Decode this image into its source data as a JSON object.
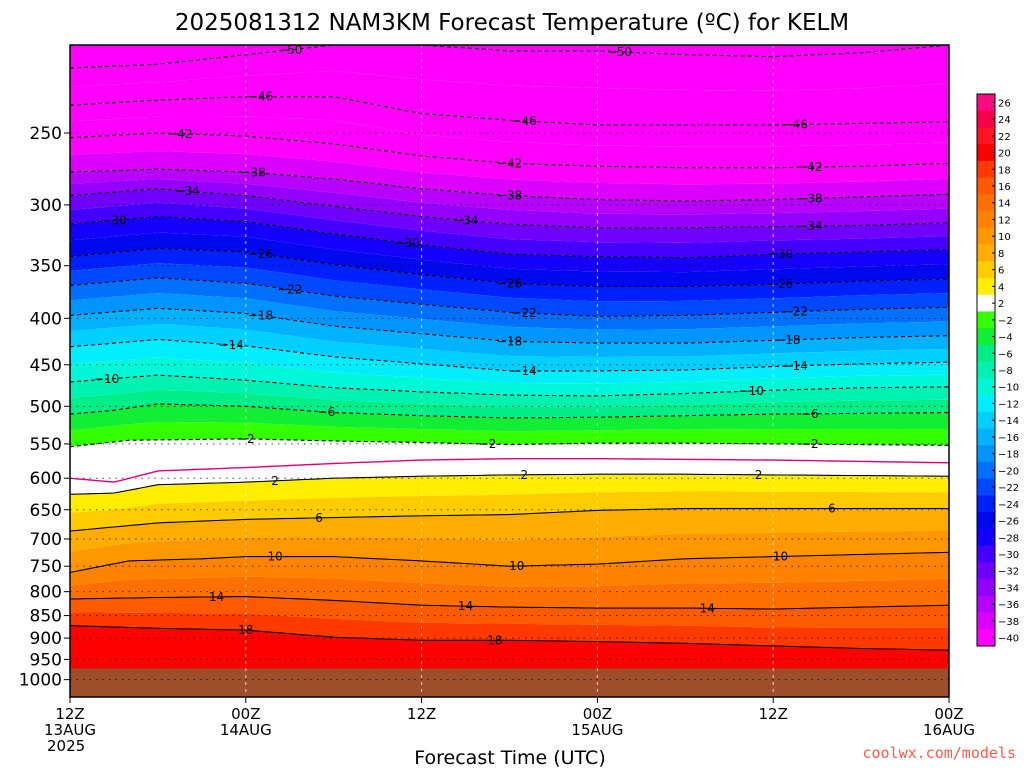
{
  "chart_data": {
    "type": "heatmap",
    "title": "2025081312 NAM3KM Forecast Temperature (ºC) for KELM",
    "xlabel": "Forecast Time (UTC)",
    "ylabel": "",
    "x_ticks": [
      {
        "hours": 0,
        "lines": [
          "12Z",
          "13AUG",
          "2025"
        ]
      },
      {
        "hours": 12,
        "lines": [
          "00Z",
          "14AUG"
        ]
      },
      {
        "hours": 24,
        "lines": [
          "12Z"
        ]
      },
      {
        "hours": 36,
        "lines": [
          "00Z",
          "15AUG"
        ]
      },
      {
        "hours": 48,
        "lines": [
          "12Z"
        ]
      },
      {
        "hours": 60,
        "lines": [
          "00Z",
          "16AUG"
        ]
      }
    ],
    "xlim_hours": [
      0,
      60
    ],
    "y_scale": "log-pressure",
    "ylim_hPa": [
      1045,
      200
    ],
    "y_ticks_hPa": [
      250,
      300,
      350,
      400,
      450,
      500,
      550,
      600,
      650,
      700,
      750,
      800,
      850,
      900,
      950,
      1000
    ],
    "surface_pressure_hPa": 972,
    "surface_color": "#9c4f2a",
    "colorbar_levels": [
      26,
      24,
      22,
      20,
      18,
      16,
      14,
      12,
      10,
      8,
      6,
      4,
      2,
      -2,
      -4,
      -6,
      -8,
      -10,
      -12,
      -14,
      -16,
      -18,
      -20,
      -22,
      -24,
      -26,
      -28,
      -30,
      -32,
      -34,
      -36,
      -38,
      -40
    ],
    "colorbar_label_texts": [
      "26",
      "24",
      "22",
      "20",
      "18",
      "16",
      "14",
      "12",
      "10",
      "8",
      "6",
      "4",
      "2",
      "−2",
      "−4",
      "−6",
      "−8",
      "−10",
      "−12",
      "−14",
      "−16",
      "−18",
      "−20",
      "−22",
      "−24",
      "−26",
      "−28",
      "−30",
      "−32",
      "−34",
      "−36",
      "−38",
      "−40"
    ],
    "colorbar_colors": [
      "#fb0a83",
      "#f9004b",
      "#ff1424",
      "#ff0000",
      "#ff3a00",
      "#ff5a00",
      "#ff7000",
      "#ff8300",
      "#ff9800",
      "#ffad00",
      "#ffcc00",
      "#ffee00",
      "#ffffff",
      "#33ff00",
      "#11ee33",
      "#00ee88",
      "#00f2b0",
      "#00f8d8",
      "#00eeff",
      "#00d0ff",
      "#00b2ff",
      "#0094ff",
      "#0070ff",
      "#0048ff",
      "#0020ff",
      "#0008ee",
      "#1500ff",
      "#4400ff",
      "#7000ff",
      "#9400ff",
      "#b800ff",
      "#dc00ff",
      "#ff00ff"
    ],
    "freezing_line": [
      [
        0,
        600
      ],
      [
        3,
        606
      ],
      [
        6,
        589
      ],
      [
        12,
        584
      ],
      [
        18,
        578
      ],
      [
        24,
        573
      ],
      [
        30,
        571
      ],
      [
        36,
        571
      ],
      [
        42,
        572
      ],
      [
        48,
        573
      ],
      [
        54,
        575
      ],
      [
        60,
        577
      ]
    ],
    "isotherms": [
      {
        "value": -50,
        "label_texts": [
          "−50",
          "−50"
        ],
        "points": [
          [
            0,
            212
          ],
          [
            6,
            210
          ],
          [
            12,
            205
          ],
          [
            18,
            200
          ],
          [
            24,
            200
          ],
          [
            30,
            203
          ],
          [
            36,
            203
          ],
          [
            42,
            205
          ],
          [
            48,
            206
          ],
          [
            54,
            204
          ],
          [
            60,
            200
          ]
        ],
        "label_hours": [
          15,
          37.5
        ]
      },
      {
        "value": -46,
        "points": [
          [
            0,
            233
          ],
          [
            6,
            230
          ],
          [
            12,
            228
          ],
          [
            18,
            228
          ],
          [
            24,
            238
          ],
          [
            30,
            242
          ],
          [
            36,
            245
          ],
          [
            42,
            245
          ],
          [
            48,
            245
          ],
          [
            54,
            244
          ],
          [
            60,
            243
          ]
        ],
        "label_texts": [
          "−46",
          "−46",
          "−46"
        ],
        "label_hours": [
          13,
          31,
          49.5
        ]
      },
      {
        "value": -42,
        "points": [
          [
            0,
            253
          ],
          [
            6,
            250
          ],
          [
            12,
            252
          ],
          [
            18,
            257
          ],
          [
            24,
            265
          ],
          [
            30,
            270
          ],
          [
            36,
            272
          ],
          [
            42,
            273
          ],
          [
            48,
            273
          ],
          [
            54,
            272
          ],
          [
            60,
            270
          ]
        ],
        "label_texts": [
          "−42",
          "−42",
          "−42"
        ],
        "label_hours": [
          7.5,
          30,
          50.5
        ]
      },
      {
        "value": -38,
        "points": [
          [
            0,
            276
          ],
          [
            6,
            274
          ],
          [
            12,
            276
          ],
          [
            18,
            281
          ],
          [
            24,
            288
          ],
          [
            30,
            293
          ],
          [
            36,
            296
          ],
          [
            42,
            297
          ],
          [
            48,
            296
          ],
          [
            54,
            294
          ],
          [
            60,
            292
          ]
        ],
        "label_texts": [
          "−38",
          "−38",
          "−38"
        ],
        "label_hours": [
          12.5,
          30,
          50.5
        ]
      },
      {
        "value": -34,
        "points": [
          [
            0,
            293
          ],
          [
            6,
            288
          ],
          [
            12,
            293
          ],
          [
            18,
            301
          ],
          [
            24,
            309
          ],
          [
            30,
            315
          ],
          [
            36,
            318
          ],
          [
            42,
            318
          ],
          [
            48,
            317
          ],
          [
            54,
            316
          ],
          [
            60,
            314
          ]
        ],
        "label_texts": [
          "−34",
          "−34",
          "−34"
        ],
        "label_hours": [
          8,
          27,
          50.5
        ]
      },
      {
        "value": -30,
        "points": [
          [
            0,
            315
          ],
          [
            6,
            309
          ],
          [
            12,
            313
          ],
          [
            18,
            323
          ],
          [
            24,
            332
          ],
          [
            30,
            340
          ],
          [
            36,
            342
          ],
          [
            42,
            343
          ],
          [
            48,
            340
          ],
          [
            54,
            338
          ],
          [
            60,
            336
          ]
        ],
        "label_texts": [
          "−30",
          "−30",
          "−30"
        ],
        "label_hours": [
          3,
          23,
          48.5
        ]
      },
      {
        "value": -26,
        "points": [
          [
            0,
            342
          ],
          [
            6,
            335
          ],
          [
            12,
            338
          ],
          [
            18,
            349
          ],
          [
            24,
            358
          ],
          [
            30,
            366
          ],
          [
            36,
            369
          ],
          [
            42,
            369
          ],
          [
            48,
            367
          ],
          [
            54,
            364
          ],
          [
            60,
            362
          ]
        ],
        "label_texts": [
          "−26",
          "−26",
          "−26"
        ],
        "label_hours": [
          13,
          30,
          48.5
        ]
      },
      {
        "value": -22,
        "points": [
          [
            0,
            368
          ],
          [
            6,
            361
          ],
          [
            12,
            366
          ],
          [
            18,
            378
          ],
          [
            24,
            386
          ],
          [
            30,
            394
          ],
          [
            36,
            398
          ],
          [
            42,
            397
          ],
          [
            48,
            394
          ],
          [
            54,
            391
          ],
          [
            60,
            389
          ]
        ],
        "label_texts": [
          "−22",
          "−22",
          "−22"
        ],
        "label_hours": [
          15,
          31,
          49.5
        ]
      },
      {
        "value": -18,
        "points": [
          [
            0,
            397
          ],
          [
            6,
            390
          ],
          [
            12,
            395
          ],
          [
            18,
            408
          ],
          [
            24,
            416
          ],
          [
            30,
            424
          ],
          [
            36,
            426
          ],
          [
            42,
            426
          ],
          [
            48,
            423
          ],
          [
            54,
            420
          ],
          [
            60,
            418
          ]
        ],
        "label_texts": [
          "−18",
          "−18",
          "−18"
        ],
        "label_hours": [
          13,
          30,
          49
        ]
      },
      {
        "value": -14,
        "points": [
          [
            0,
            430
          ],
          [
            6,
            422
          ],
          [
            12,
            429
          ],
          [
            18,
            441
          ],
          [
            24,
            449
          ],
          [
            30,
            457
          ],
          [
            36,
            457
          ],
          [
            42,
            456
          ],
          [
            48,
            452
          ],
          [
            54,
            449
          ],
          [
            60,
            447
          ]
        ],
        "label_texts": [
          "−14",
          "−14",
          "−14"
        ],
        "label_hours": [
          11,
          31,
          49.5
        ]
      },
      {
        "value": -10,
        "points": [
          [
            0,
            470
          ],
          [
            6,
            462
          ],
          [
            12,
            468
          ],
          [
            18,
            477
          ],
          [
            24,
            482
          ],
          [
            30,
            486
          ],
          [
            36,
            487
          ],
          [
            42,
            484
          ],
          [
            48,
            480
          ],
          [
            54,
            477
          ],
          [
            60,
            476
          ]
        ],
        "label_texts": [
          "−10",
          "−10"
        ],
        "label_hours": [
          2.5,
          46.5
        ]
      },
      {
        "value": -6,
        "points": [
          [
            0,
            510
          ],
          [
            3,
            505
          ],
          [
            6,
            497
          ],
          [
            12,
            500
          ],
          [
            18,
            508
          ],
          [
            24,
            512
          ],
          [
            30,
            515
          ],
          [
            36,
            514
          ],
          [
            42,
            512
          ],
          [
            48,
            510
          ],
          [
            54,
            509
          ],
          [
            60,
            508
          ]
        ],
        "label_texts": [
          "−6",
          "−6"
        ],
        "label_hours": [
          17.5,
          50.5
        ]
      },
      {
        "value": -2,
        "points": [
          [
            0,
            554
          ],
          [
            4,
            545
          ],
          [
            12,
            543
          ],
          [
            18,
            546
          ],
          [
            24,
            548
          ],
          [
            30,
            551
          ],
          [
            36,
            549
          ],
          [
            42,
            549
          ],
          [
            48,
            550
          ],
          [
            54,
            551
          ],
          [
            60,
            552
          ]
        ],
        "label_texts": [
          "−2",
          "−2",
          "−2"
        ],
        "label_hours": [
          12,
          28.5,
          50.5
        ]
      }
    ],
    "warm_isotherms": [
      {
        "value": 2,
        "points": [
          [
            0,
            625
          ],
          [
            3,
            623
          ],
          [
            6,
            610
          ],
          [
            12,
            606
          ],
          [
            18,
            600
          ],
          [
            24,
            597
          ],
          [
            30,
            595
          ],
          [
            36,
            594
          ],
          [
            42,
            594
          ],
          [
            48,
            595
          ],
          [
            54,
            596
          ],
          [
            60,
            597
          ]
        ],
        "label_texts": [
          "2",
          "2",
          "2"
        ],
        "label_hours": [
          14,
          31,
          47
        ]
      },
      {
        "value": 6,
        "points": [
          [
            0,
            686
          ],
          [
            6,
            672
          ],
          [
            12,
            666
          ],
          [
            18,
            663
          ],
          [
            24,
            660
          ],
          [
            30,
            658
          ],
          [
            36,
            651
          ],
          [
            42,
            648
          ],
          [
            48,
            648
          ],
          [
            54,
            648
          ],
          [
            60,
            648
          ]
        ],
        "label_texts": [
          "6",
          "6"
        ],
        "label_hours": [
          17,
          52
        ]
      },
      {
        "value": 10,
        "points": [
          [
            0,
            762
          ],
          [
            4,
            740
          ],
          [
            9,
            736
          ],
          [
            12,
            732
          ],
          [
            18,
            732
          ],
          [
            24,
            740
          ],
          [
            30,
            750
          ],
          [
            36,
            746
          ],
          [
            42,
            736
          ],
          [
            48,
            732
          ],
          [
            54,
            728
          ],
          [
            60,
            724
          ]
        ],
        "label_texts": [
          "10",
          "10",
          "10"
        ],
        "label_hours": [
          14,
          30.5,
          48.5
        ]
      },
      {
        "value": 14,
        "points": [
          [
            0,
            815
          ],
          [
            6,
            812
          ],
          [
            12,
            810
          ],
          [
            18,
            818
          ],
          [
            24,
            828
          ],
          [
            30,
            832
          ],
          [
            36,
            834
          ],
          [
            42,
            834
          ],
          [
            48,
            836
          ],
          [
            54,
            832
          ],
          [
            60,
            828
          ]
        ],
        "label_texts": [
          "14",
          "14",
          "14"
        ],
        "label_hours": [
          10,
          27,
          43.5
        ]
      },
      {
        "value": 18,
        "points": [
          [
            0,
            872
          ],
          [
            6,
            878
          ],
          [
            12,
            882
          ],
          [
            18,
            898
          ],
          [
            24,
            905
          ],
          [
            30,
            905
          ],
          [
            36,
            908
          ],
          [
            42,
            912
          ],
          [
            48,
            918
          ],
          [
            54,
            924
          ],
          [
            60,
            928
          ]
        ],
        "label_texts": [
          "18",
          "18"
        ],
        "label_hours": [
          12,
          29
        ]
      }
    ]
  },
  "credit": "coolwx.com/models"
}
